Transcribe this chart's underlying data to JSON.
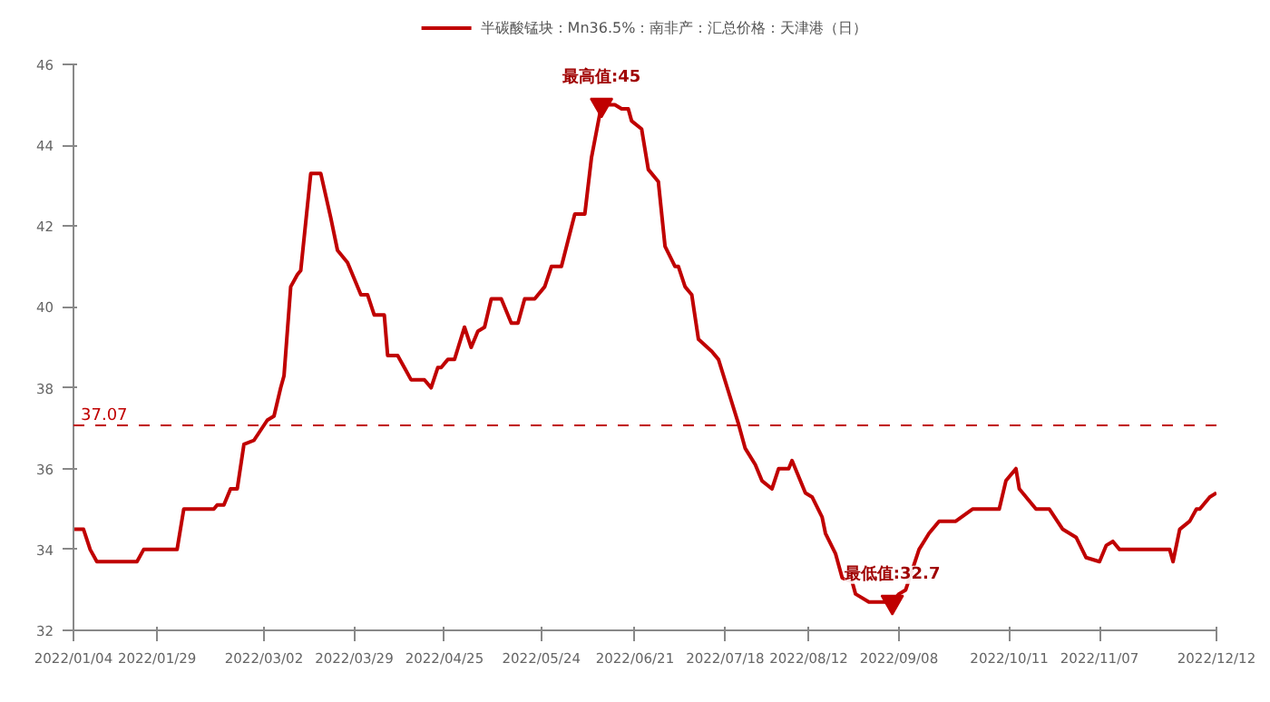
{
  "chart_data": {
    "type": "line",
    "x": [
      "2022-01-04",
      "2022-01-07",
      "2022-01-09",
      "2022-01-11",
      "2022-01-23",
      "2022-01-25",
      "2022-02-04",
      "2022-02-06",
      "2022-02-15",
      "2022-02-16",
      "2022-02-18",
      "2022-02-20",
      "2022-02-22",
      "2022-02-24",
      "2022-02-27",
      "2022-03-03",
      "2022-03-05",
      "2022-03-07",
      "2022-03-08",
      "2022-03-10",
      "2022-03-12",
      "2022-03-13",
      "2022-03-16",
      "2022-03-19",
      "2022-03-22",
      "2022-03-24",
      "2022-03-27",
      "2022-03-29",
      "2022-03-31",
      "2022-04-02",
      "2022-04-04",
      "2022-04-07",
      "2022-04-08",
      "2022-04-11",
      "2022-04-13",
      "2022-04-15",
      "2022-04-19",
      "2022-04-21",
      "2022-04-23",
      "2022-04-24",
      "2022-04-26",
      "2022-04-28",
      "2022-05-01",
      "2022-05-03",
      "2022-05-05",
      "2022-05-07",
      "2022-05-09",
      "2022-05-12",
      "2022-05-15",
      "2022-05-17",
      "2022-05-19",
      "2022-05-22",
      "2022-05-25",
      "2022-05-27",
      "2022-05-30",
      "2022-06-03",
      "2022-06-06",
      "2022-06-08",
      "2022-06-11",
      "2022-06-15",
      "2022-06-17",
      "2022-06-19",
      "2022-06-20",
      "2022-06-23",
      "2022-06-25",
      "2022-06-28",
      "2022-06-30",
      "2022-07-03",
      "2022-07-04",
      "2022-07-06",
      "2022-07-08",
      "2022-07-10",
      "2022-07-14",
      "2022-07-16",
      "2022-07-19",
      "2022-07-22",
      "2022-07-24",
      "2022-07-27",
      "2022-07-29",
      "2022-08-01",
      "2022-08-03",
      "2022-08-06",
      "2022-08-07",
      "2022-08-11",
      "2022-08-13",
      "2022-08-16",
      "2022-08-17",
      "2022-08-20",
      "2022-08-22",
      "2022-08-25",
      "2022-08-26",
      "2022-08-30",
      "2022-09-06",
      "2022-09-08",
      "2022-09-10",
      "2022-09-14",
      "2022-09-17",
      "2022-09-20",
      "2022-09-25",
      "2022-09-30",
      "2022-10-08",
      "2022-10-10",
      "2022-10-13",
      "2022-10-14",
      "2022-10-19",
      "2022-10-23",
      "2022-10-27",
      "2022-10-31",
      "2022-11-03",
      "2022-11-07",
      "2022-11-09",
      "2022-11-11",
      "2022-11-13",
      "2022-11-28",
      "2022-11-29",
      "2022-12-01",
      "2022-12-04",
      "2022-12-06",
      "2022-12-07",
      "2022-12-10",
      "2022-12-12"
    ],
    "series": [
      {
        "name": "半碳酸锰块：Mn36.5%：南非产：汇总价格：天津港（日）",
        "color": "#c00000",
        "values": [
          34.5,
          34.5,
          34.0,
          33.7,
          33.7,
          34.0,
          34.0,
          35.0,
          35.0,
          35.1,
          35.1,
          35.5,
          35.5,
          36.6,
          36.7,
          37.2,
          37.3,
          38.0,
          38.3,
          40.5,
          40.8,
          40.9,
          43.3,
          43.3,
          42.2,
          41.4,
          41.1,
          40.7,
          40.3,
          40.3,
          39.8,
          39.8,
          38.8,
          38.8,
          38.5,
          38.2,
          38.2,
          38.0,
          38.5,
          38.5,
          38.7,
          38.7,
          39.5,
          39.0,
          39.4,
          39.5,
          40.2,
          40.2,
          39.6,
          39.6,
          40.2,
          40.2,
          40.5,
          41.0,
          41.0,
          42.3,
          42.3,
          43.7,
          45.0,
          45.0,
          44.9,
          44.9,
          44.6,
          44.4,
          43.4,
          43.1,
          41.5,
          41.0,
          41.0,
          40.5,
          40.3,
          39.2,
          38.9,
          38.7,
          37.9,
          37.1,
          36.5,
          36.1,
          35.7,
          35.5,
          36.0,
          36.0,
          36.2,
          35.4,
          35.3,
          34.8,
          34.4,
          33.9,
          33.3,
          33.2,
          32.9,
          32.7,
          32.7,
          32.9,
          33.0,
          34.0,
          34.4,
          34.7,
          34.7,
          35.0,
          35.0,
          35.7,
          36.0,
          35.5,
          35.0,
          35.0,
          34.5,
          34.3,
          33.8,
          33.7,
          34.1,
          34.2,
          34.0,
          34.0,
          33.7,
          34.5,
          34.7,
          35.0,
          35.0,
          35.3,
          35.4
        ]
      }
    ],
    "ylim": [
      32,
      46
    ],
    "yticks": [
      32,
      34,
      36,
      38,
      40,
      42,
      44,
      46
    ],
    "xlim": [
      "2022-01-04",
      "2022-12-12"
    ],
    "xticks": [
      {
        "value": "2022-01-04",
        "label": "2022/01/04"
      },
      {
        "value": "2022-01-29",
        "label": "2022/01/29"
      },
      {
        "value": "2022-03-02",
        "label": "2022/03/02"
      },
      {
        "value": "2022-03-29",
        "label": "2022/03/29"
      },
      {
        "value": "2022-04-25",
        "label": "2022/04/25"
      },
      {
        "value": "2022-05-24",
        "label": "2022/05/24"
      },
      {
        "value": "2022-06-21",
        "label": "2022/06/21"
      },
      {
        "value": "2022-07-18",
        "label": "2022/07/18"
      },
      {
        "value": "2022-08-12",
        "label": "2022/08/12"
      },
      {
        "value": "2022-09-08",
        "label": "2022/09/08"
      },
      {
        "value": "2022-10-11",
        "label": "2022/10/11"
      },
      {
        "value": "2022-11-07",
        "label": "2022/11/07"
      },
      {
        "value": "2022-12-12",
        "label": "2022/12/12"
      }
    ],
    "ref_lines": [
      {
        "axis": "y",
        "value": 37.07,
        "label": "37.07",
        "color": "#c00000",
        "line_style": "dashed"
      }
    ],
    "annotations": [
      {
        "text": "最高值:45",
        "x": "2022-06-11",
        "y": 45
      },
      {
        "text": "最低值:32.7",
        "x": "2022-09-06",
        "y": 32.7
      }
    ],
    "legend": "top",
    "grid": false,
    "marker": "none",
    "line_style": "solid"
  }
}
